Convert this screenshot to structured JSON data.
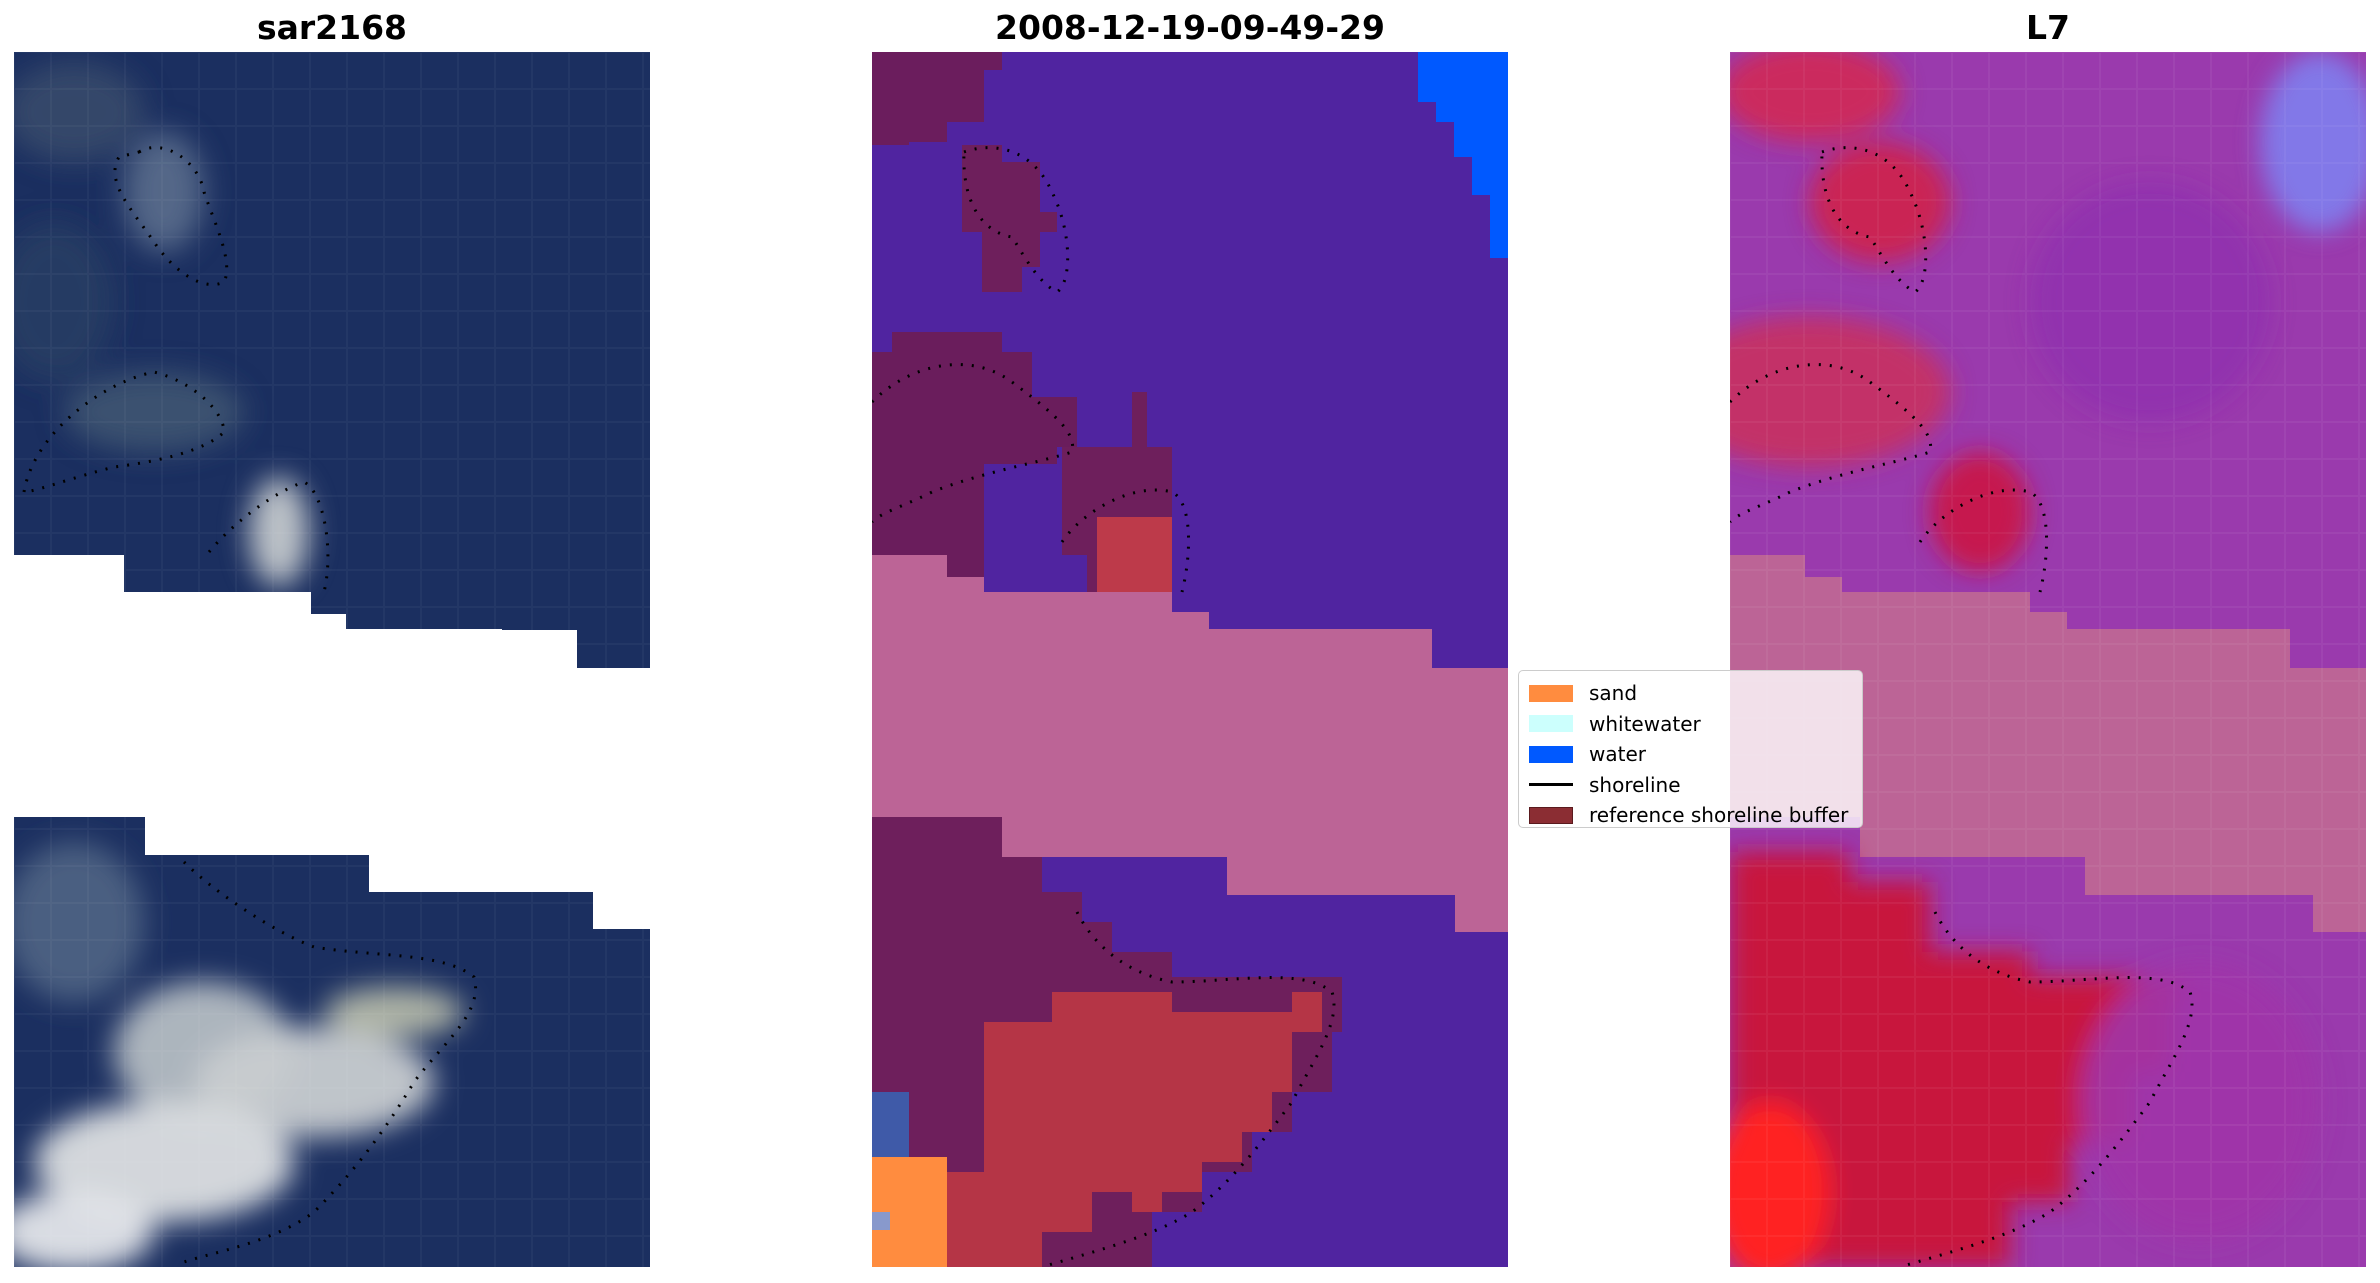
{
  "titles": {
    "left": "sar2168",
    "middle": "2008-12-19-09-49-29",
    "right": "L7"
  },
  "legend": [
    {
      "label": "sand",
      "color": "#ff8c3f",
      "kind": "patch"
    },
    {
      "label": "whitewater",
      "color": "#ccfffd",
      "kind": "patch"
    },
    {
      "label": "water",
      "color": "#0059ff",
      "kind": "patch"
    },
    {
      "label": "shoreline",
      "color": "#000000",
      "kind": "line"
    },
    {
      "label": "reference shoreline buffer",
      "color": "#8b2d33",
      "kind": "patch"
    }
  ],
  "chart_data": {
    "type": "heatmap",
    "panels": [
      "sar2168",
      "2008-12-19-09-49-29",
      "L7"
    ],
    "classes": [
      "sand",
      "whitewater",
      "water"
    ],
    "overlays": [
      "shoreline",
      "reference shoreline buffer"
    ],
    "colors": {
      "sand": "#ff8c3f",
      "whitewater": "#ccfffd",
      "water": "#0059ff",
      "background_class": "#5024a0",
      "buffer": "#8b2d33",
      "cloud_band": "#bc6496",
      "rgb_water": "#1b2f60",
      "l7_water": "#9a3aad",
      "l7_land": "#c8143c"
    },
    "axes": "off"
  }
}
